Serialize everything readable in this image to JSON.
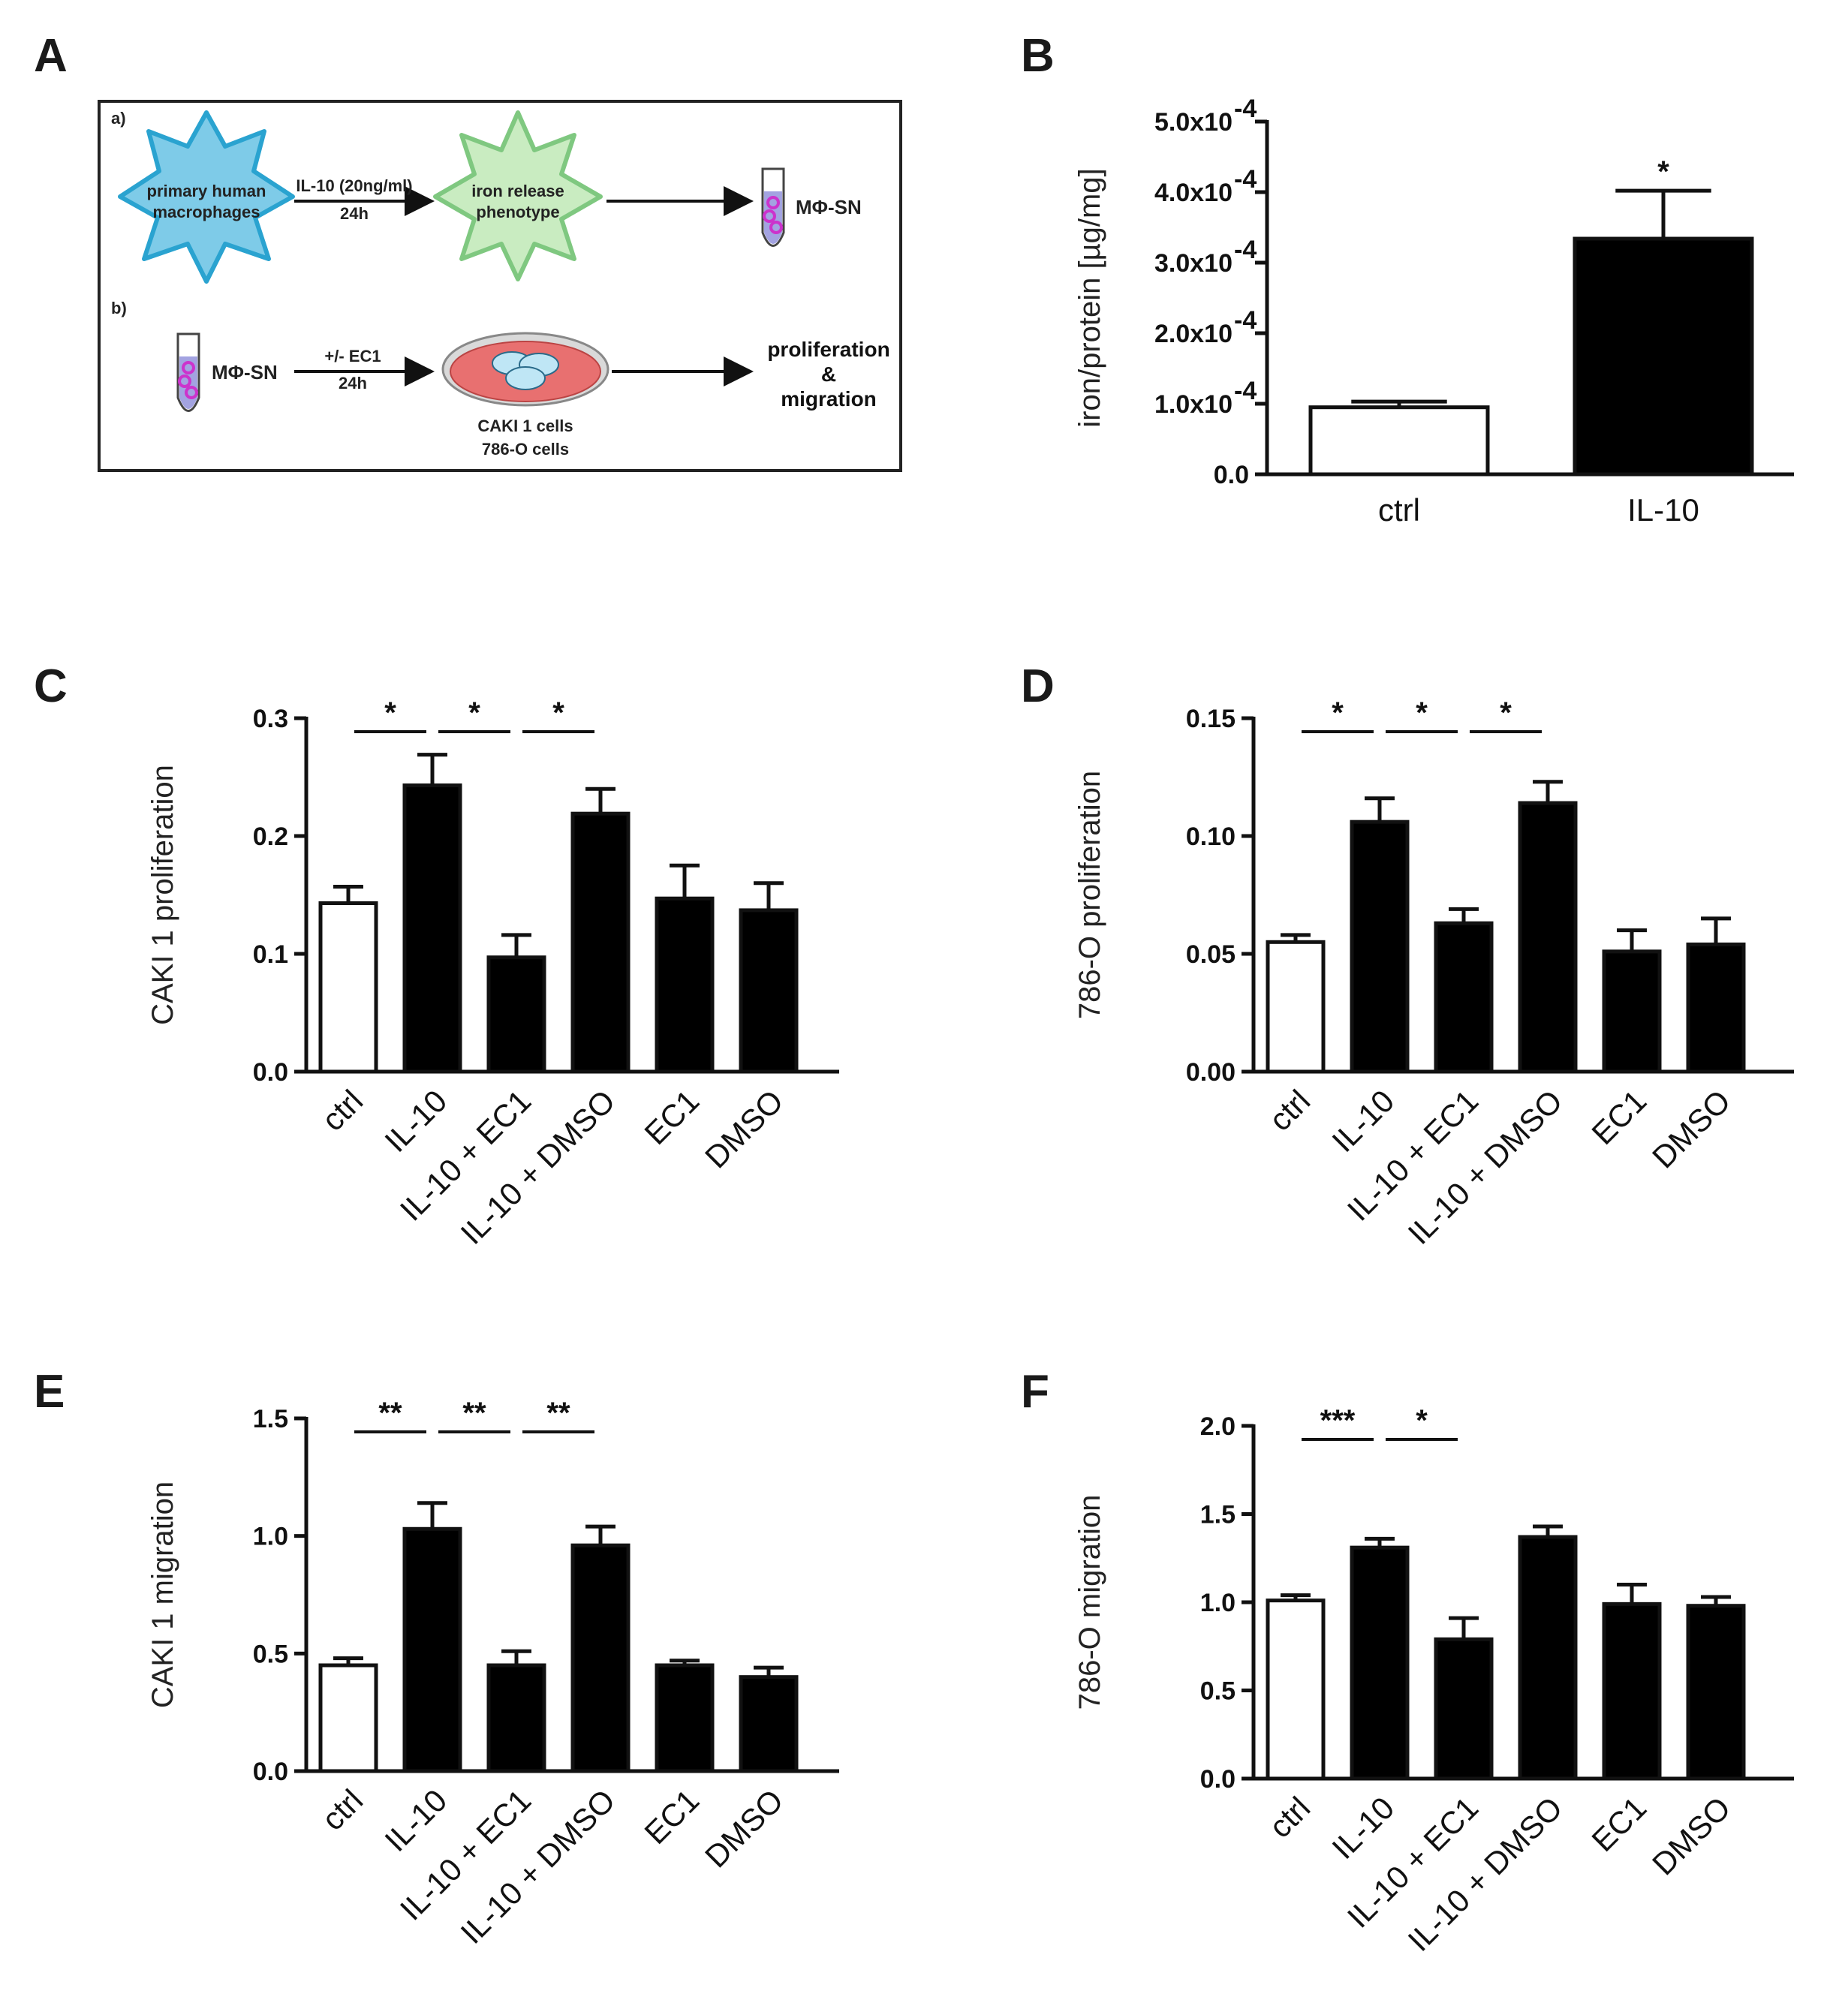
{
  "panels": {
    "A": "A",
    "B": "B",
    "C": "C",
    "D": "D",
    "E": "E",
    "F": "F"
  },
  "colors": {
    "filled": "#000000",
    "open": "#ffffff",
    "macrophage": "#7ecbe8",
    "macrophage_edge": "#2aa3d0",
    "iron": "#c9ecc1",
    "iron_edge": "#7fc880",
    "dish": "#e87070",
    "tube_fill": "#8c8cd9",
    "beads": "#cc33cc"
  },
  "schematic": {
    "a_label": "a)",
    "b_label": "b)",
    "macrophages_line1": "primary human",
    "macrophages_line2": "macrophages",
    "il10_line1": "IL-10 (20ng/ml)",
    "il10_line2": "24h",
    "iron_line1": "iron release",
    "iron_line2": "phenotype",
    "msn_a": "MΦ-SN",
    "msn_b": "MΦ-SN",
    "ec1_line1": "+/- EC1",
    "ec1_line2": "24h",
    "cells_line1": "CAKI 1 cells",
    "cells_line2": "786-O cells",
    "out_line1": "proliferation",
    "out_line2": "&",
    "out_line3": "migration"
  },
  "chart_data": [
    {
      "id": "B",
      "type": "bar",
      "categories": [
        "ctrl",
        "IL-10"
      ],
      "values": [
        9.5e-05,
        0.000334
      ],
      "errors": [
        8e-06,
        6.8e-05
      ],
      "fill": [
        "open",
        "filled"
      ],
      "ylabel": "iron/protein [µg/mg]",
      "ylim": [
        0,
        0.0005
      ],
      "yticks": [
        0,
        0.0001,
        0.0002,
        0.0003,
        0.0004,
        0.0005
      ],
      "ytick_base": [
        "0.0",
        "1.0x10",
        "2.0x10",
        "3.0x10",
        "4.0x10",
        "5.0x10"
      ],
      "ytick_exp": [
        "",
        "-4",
        "-4",
        "-4",
        "-4",
        "-4"
      ],
      "annotations": [
        {
          "type": "star",
          "bar": 1,
          "text": "*"
        }
      ]
    },
    {
      "id": "C",
      "type": "bar",
      "categories": [
        "ctrl",
        "IL-10",
        "IL-10 + EC1",
        "IL-10 + DMSO",
        "EC1",
        "DMSO"
      ],
      "values": [
        0.143,
        0.243,
        0.097,
        0.219,
        0.147,
        0.137
      ],
      "errors": [
        0.014,
        0.026,
        0.019,
        0.021,
        0.028,
        0.023
      ],
      "fill": [
        "open",
        "filled",
        "filled",
        "filled",
        "filled",
        "filled"
      ],
      "ylabel": "CAKI 1 proliferation",
      "ylim": [
        0,
        0.3
      ],
      "yticks": [
        0,
        0.1,
        0.2,
        0.3
      ],
      "yticklabels": [
        "0.0",
        "0.1",
        "0.2",
        "0.3"
      ],
      "significance": [
        {
          "from": 0,
          "to": 1,
          "text": "*"
        },
        {
          "from": 1,
          "to": 2,
          "text": "*"
        },
        {
          "from": 2,
          "to": 3,
          "text": "*"
        }
      ]
    },
    {
      "id": "D",
      "type": "bar",
      "categories": [
        "ctrl",
        "IL-10",
        "IL-10 + EC1",
        "IL-10 + DMSO",
        "EC1",
        "DMSO"
      ],
      "values": [
        0.055,
        0.106,
        0.063,
        0.114,
        0.051,
        0.054
      ],
      "errors": [
        0.003,
        0.01,
        0.006,
        0.009,
        0.009,
        0.011
      ],
      "fill": [
        "open",
        "filled",
        "filled",
        "filled",
        "filled",
        "filled"
      ],
      "ylabel": "786-O proliferation",
      "ylim": [
        0,
        0.15
      ],
      "yticks": [
        0,
        0.05,
        0.1,
        0.15
      ],
      "yticklabels": [
        "0.00",
        "0.05",
        "0.10",
        "0.15"
      ],
      "significance": [
        {
          "from": 0,
          "to": 1,
          "text": "*"
        },
        {
          "from": 1,
          "to": 2,
          "text": "*"
        },
        {
          "from": 2,
          "to": 3,
          "text": "*"
        }
      ]
    },
    {
      "id": "E",
      "type": "bar",
      "categories": [
        "ctrl",
        "IL-10",
        "IL-10 + EC1",
        "IL-10 + DMSO",
        "EC1",
        "DMSO"
      ],
      "values": [
        0.45,
        1.03,
        0.45,
        0.96,
        0.45,
        0.4
      ],
      "errors": [
        0.03,
        0.11,
        0.06,
        0.08,
        0.02,
        0.04
      ],
      "fill": [
        "open",
        "filled",
        "filled",
        "filled",
        "filled",
        "filled"
      ],
      "ylabel": "CAKI 1 migration",
      "ylim": [
        0,
        1.5
      ],
      "yticks": [
        0,
        0.5,
        1.0,
        1.5
      ],
      "yticklabels": [
        "0.0",
        "0.5",
        "1.0",
        "1.5"
      ],
      "significance": [
        {
          "from": 0,
          "to": 1,
          "text": "**"
        },
        {
          "from": 1,
          "to": 2,
          "text": "**"
        },
        {
          "from": 2,
          "to": 3,
          "text": "**"
        }
      ]
    },
    {
      "id": "F",
      "type": "bar",
      "categories": [
        "ctrl",
        "IL-10",
        "IL-10 + EC1",
        "IL-10 + DMSO",
        "EC1",
        "DMSO"
      ],
      "values": [
        1.01,
        1.31,
        0.79,
        1.37,
        0.99,
        0.98
      ],
      "errors": [
        0.03,
        0.05,
        0.12,
        0.06,
        0.11,
        0.05
      ],
      "fill": [
        "open",
        "filled",
        "filled",
        "filled",
        "filled",
        "filled"
      ],
      "ylabel": "786-O migration",
      "ylim": [
        0,
        2.0
      ],
      "yticks": [
        0,
        0.5,
        1.0,
        1.5,
        2.0
      ],
      "yticklabels": [
        "0.0",
        "0.5",
        "1.0",
        "1.5",
        "2.0"
      ],
      "significance": [
        {
          "from": 0,
          "to": 1,
          "text": "***"
        },
        {
          "from": 1,
          "to": 2,
          "text": "*"
        }
      ]
    }
  ]
}
